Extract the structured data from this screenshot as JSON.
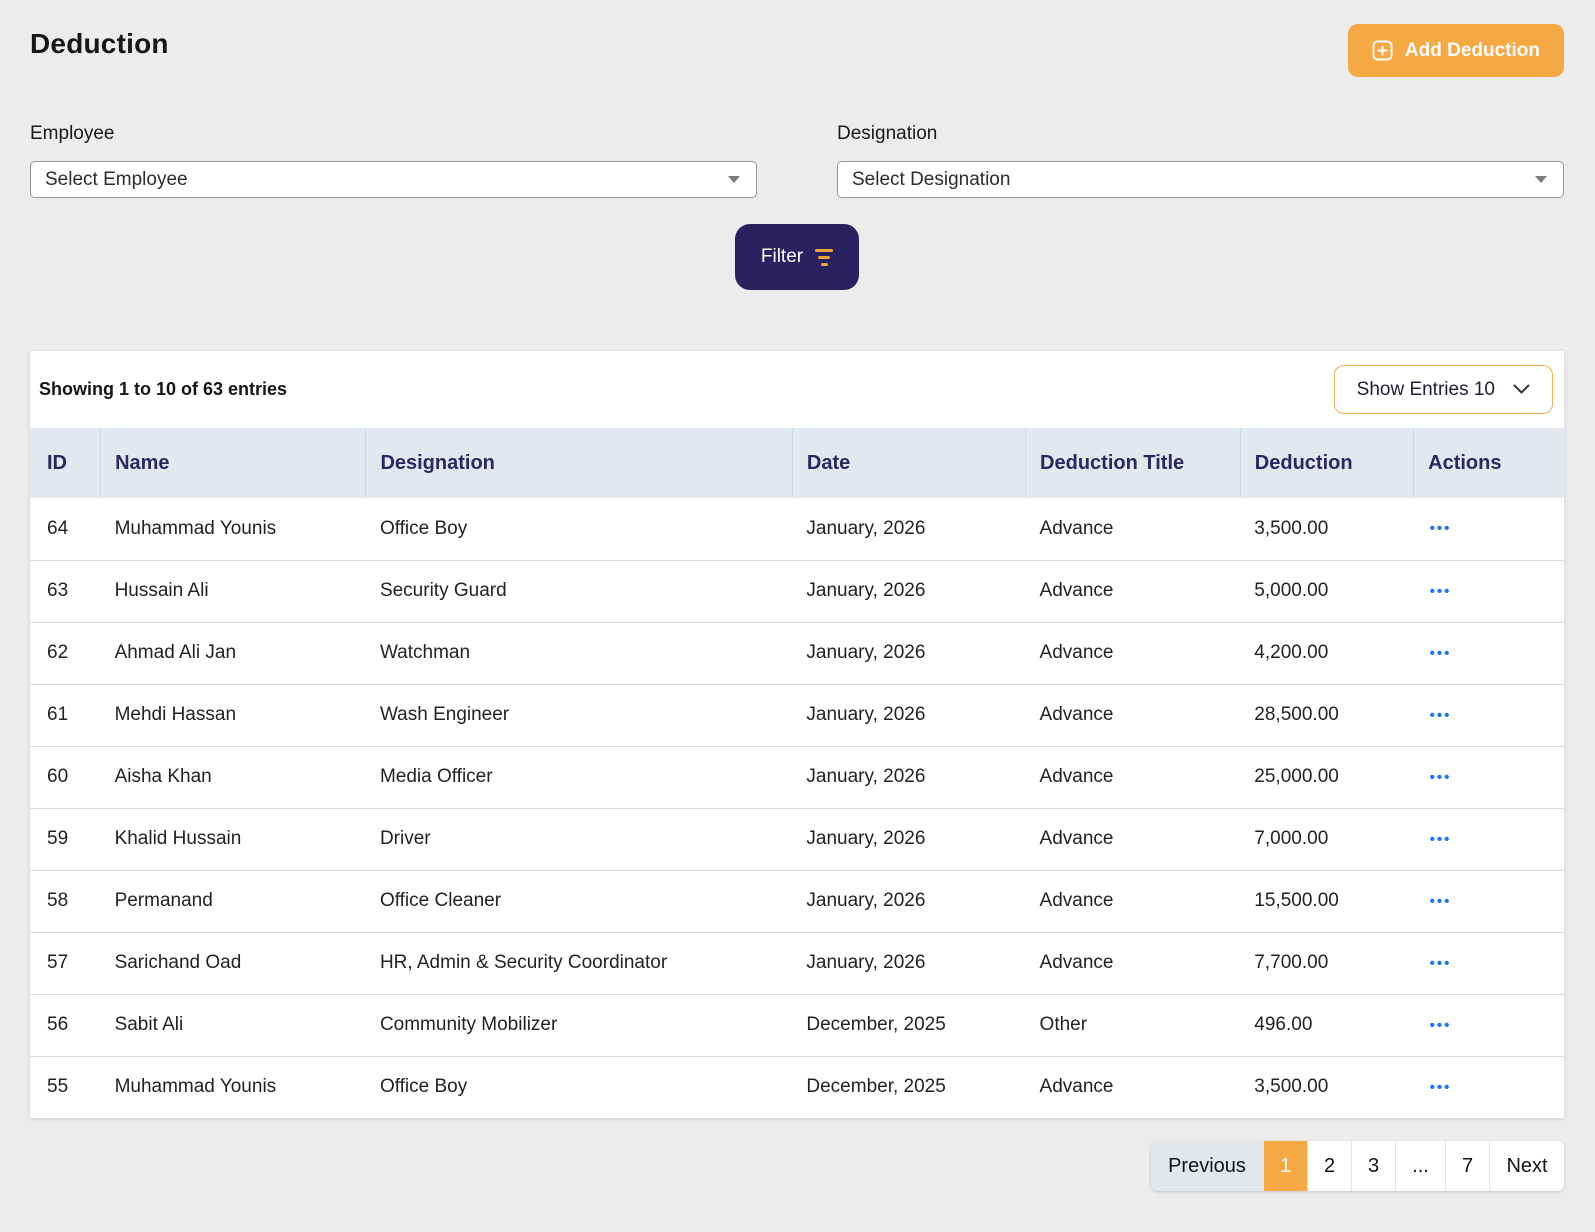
{
  "page": {
    "title": "Deduction"
  },
  "header": {
    "add_button_label": "Add Deduction"
  },
  "filters": {
    "employee_label": "Employee",
    "employee_placeholder": "Select Employee",
    "designation_label": "Designation",
    "designation_placeholder": "Select Designation",
    "filter_button_label": "Filter"
  },
  "table": {
    "summary": "Showing 1 to 10 of 63 entries",
    "show_entries_label": "Show Entries 10",
    "columns": [
      "ID",
      "Name",
      "Designation",
      "Date",
      "Deduction Title",
      "Deduction",
      "Actions"
    ],
    "rows": [
      {
        "id": "64",
        "name": "Muhammad Younis",
        "designation": "Office Boy",
        "date": "January, 2026",
        "deduction_title": "Advance",
        "deduction": "3,500.00"
      },
      {
        "id": "63",
        "name": "Hussain Ali",
        "designation": "Security Guard",
        "date": "January, 2026",
        "deduction_title": "Advance",
        "deduction": "5,000.00"
      },
      {
        "id": "62",
        "name": "Ahmad Ali Jan",
        "designation": "Watchman",
        "date": "January, 2026",
        "deduction_title": "Advance",
        "deduction": "4,200.00"
      },
      {
        "id": "61",
        "name": "Mehdi Hassan",
        "designation": "Wash Engineer",
        "date": "January, 2026",
        "deduction_title": "Advance",
        "deduction": "28,500.00"
      },
      {
        "id": "60",
        "name": "Aisha Khan",
        "designation": "Media Officer",
        "date": "January, 2026",
        "deduction_title": "Advance",
        "deduction": "25,000.00"
      },
      {
        "id": "59",
        "name": "Khalid Hussain",
        "designation": "Driver",
        "date": "January, 2026",
        "deduction_title": "Advance",
        "deduction": "7,000.00"
      },
      {
        "id": "58",
        "name": "Permanand",
        "designation": "Office Cleaner",
        "date": "January, 2026",
        "deduction_title": "Advance",
        "deduction": "15,500.00"
      },
      {
        "id": "57",
        "name": "Sarichand Oad",
        "designation": "HR, Admin & Security Coordinator",
        "date": "January, 2026",
        "deduction_title": "Advance",
        "deduction": "7,700.00"
      },
      {
        "id": "56",
        "name": "Sabit Ali",
        "designation": "Community Mobilizer",
        "date": "December, 2025",
        "deduction_title": "Other",
        "deduction": "496.00"
      },
      {
        "id": "55",
        "name": "Muhammad Younis",
        "designation": "Office Boy",
        "date": "December, 2025",
        "deduction_title": "Advance",
        "deduction": "3,500.00"
      }
    ],
    "actions_icon_glyph": "•••"
  },
  "pagination": {
    "items": [
      {
        "label": "Previous",
        "type": "prev",
        "active": false
      },
      {
        "label": "1",
        "type": "num",
        "active": true
      },
      {
        "label": "2",
        "type": "num",
        "active": false
      },
      {
        "label": "3",
        "type": "num",
        "active": false
      },
      {
        "label": "...",
        "type": "dots",
        "active": false
      },
      {
        "label": "7",
        "type": "num",
        "active": false
      },
      {
        "label": "Next",
        "type": "next",
        "active": false
      }
    ]
  },
  "colors": {
    "accent_orange": "#f6a843",
    "navy": "#2a2161",
    "action_blue": "#1b74f0",
    "table_header_bg": "#e3e8ee",
    "table_header_text": "#2c2662",
    "page_background": "#ececec"
  }
}
